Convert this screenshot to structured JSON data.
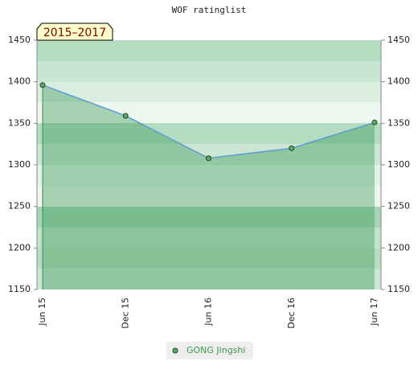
{
  "chart_data": {
    "type": "line",
    "title": "WOF ratinglist",
    "annotation": "2015–2017",
    "categories": [
      "Jun 15",
      "Dec 15",
      "Jun 16",
      "Dec 16",
      "Jun 17"
    ],
    "series": [
      {
        "name": "GONG Jingshi",
        "color": "#5b9bd5",
        "marker_color": "#5aa86a",
        "values": [
          1396,
          1359,
          1308,
          1320,
          1351
        ]
      }
    ],
    "ylim": [
      1150,
      1450
    ],
    "yticks": [
      1150,
      1200,
      1250,
      1300,
      1350,
      1400,
      1450
    ],
    "y2lim": [
      1150,
      1450
    ],
    "y2ticks": [
      1150,
      1200,
      1250,
      1300,
      1350,
      1400,
      1450
    ],
    "area": true
  }
}
